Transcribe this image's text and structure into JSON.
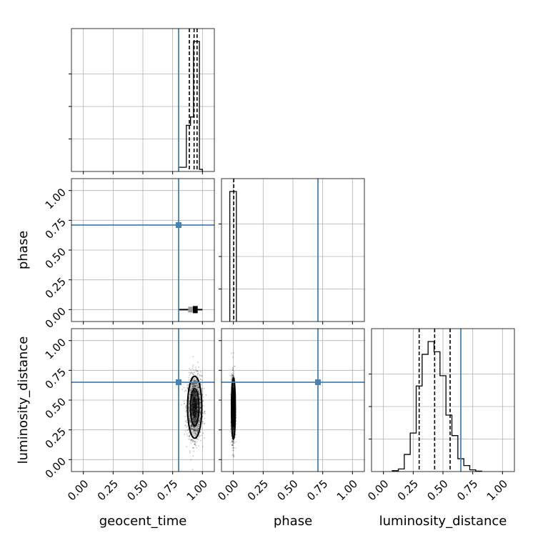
{
  "chart_data": {
    "type": "corner",
    "parameters": [
      "geocent_time",
      "phase",
      "luminosity_distance"
    ],
    "axis_range": [
      -0.1,
      1.1
    ],
    "tick_labels": [
      "0.00",
      "0.25",
      "0.50",
      "0.75",
      "1.00"
    ],
    "tick_values": [
      0.0,
      0.25,
      0.5,
      0.75,
      1.0
    ],
    "grid": true,
    "truth_color": "#4682b4",
    "truths": {
      "geocent_time": 0.8,
      "phase": 0.71,
      "luminosity_distance": 0.65
    },
    "histograms": {
      "geocent_time": {
        "bin_edges": [
          0.8,
          0.865,
          0.9,
          0.925,
          0.95,
          0.975,
          1.0
        ],
        "counts": [
          1,
          11,
          13,
          31,
          31,
          0.5
        ],
        "quantiles": [
          0.89,
          0.93,
          0.955
        ]
      },
      "phase": {
        "bin_edges": [
          -0.03,
          0.0,
          0.025
        ],
        "counts": [
          31,
          31
        ],
        "quantiles": [
          0.003
        ]
      },
      "luminosity_distance": {
        "bin_edges": [
          0.075,
          0.125,
          0.175,
          0.225,
          0.275,
          0.325,
          0.375,
          0.425,
          0.475,
          0.525,
          0.575,
          0.625,
          0.675,
          0.725,
          0.775,
          0.825
        ],
        "counts": [
          0.1,
          0.3,
          2,
          4.5,
          10,
          13.7,
          15.2,
          14,
          11.2,
          6.6,
          4.2,
          1.5,
          0.7,
          0.2,
          0.05
        ],
        "quantiles": [
          0.3,
          0.43,
          0.56
        ]
      }
    },
    "joint": {
      "phase_vs_geocent_time": {
        "x_range": [
          0.8,
          1.0
        ],
        "y_value": 0.0
      },
      "luminosity_distance_vs_geocent_time": {
        "center": [
          0.935,
          0.44
        ],
        "spread": [
          0.03,
          0.13
        ]
      },
      "luminosity_distance_vs_phase": {
        "center": [
          0.0,
          0.43
        ],
        "spread": [
          0.008,
          0.13
        ]
      }
    }
  }
}
